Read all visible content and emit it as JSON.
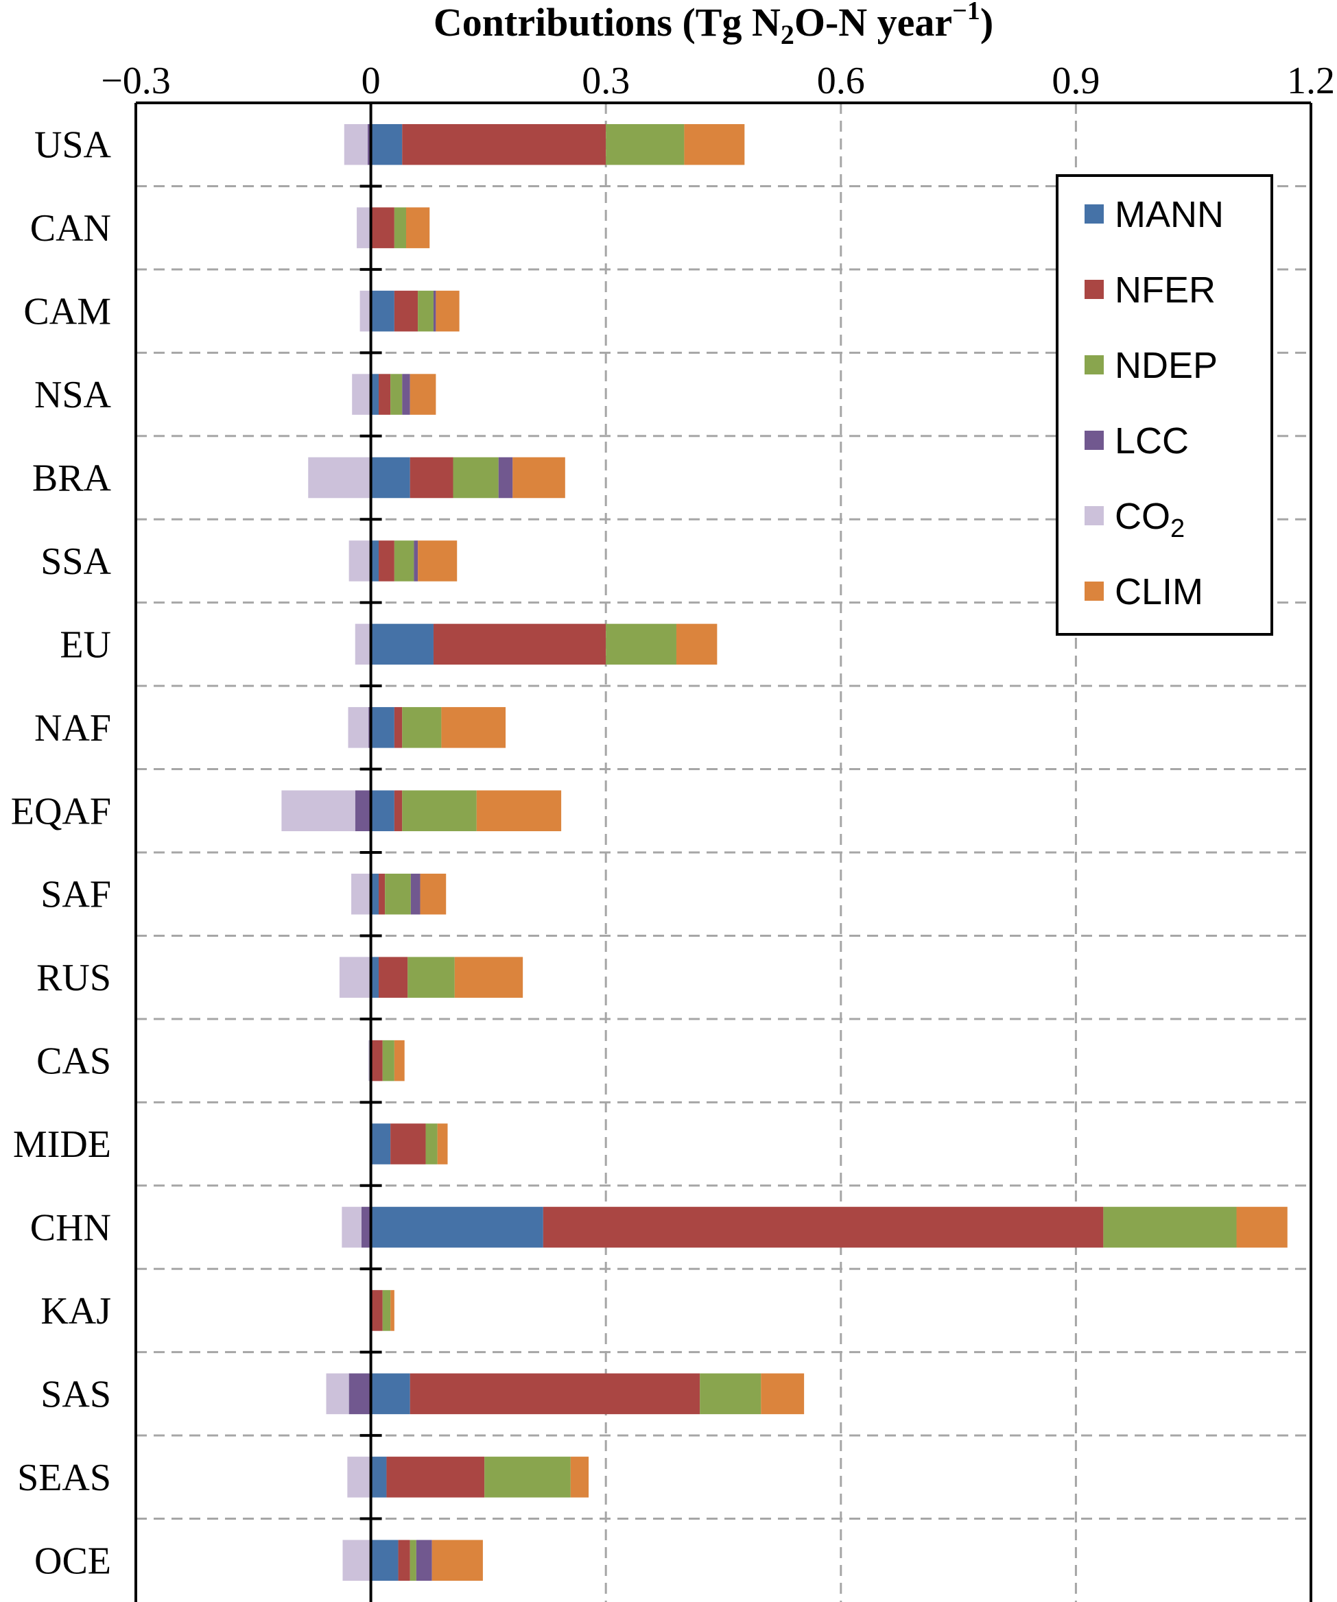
{
  "chart_data": {
    "type": "bar",
    "orientation": "horizontal",
    "stacked": true,
    "title": "Contributions (Tg N₂O-N year⁻¹)",
    "title_parts": {
      "pre": "Contributions (Tg N",
      "sub": "2",
      "mid": "O-N year",
      "sup": "−1",
      "post": ")"
    },
    "xaxis_position": "top",
    "xlim": [
      -0.3,
      1.2
    ],
    "xticks": [
      "-0.3",
      "0",
      "0.3",
      "0.6",
      "0.9",
      "1.2"
    ],
    "xtick_values": [
      -0.3,
      0,
      0.3,
      0.6,
      0.9,
      1.2
    ],
    "grid": true,
    "legend_position": "top-right",
    "categories": [
      "USA",
      "CAN",
      "CAM",
      "NSA",
      "BRA",
      "SSA",
      "EU",
      "NAF",
      "EQAF",
      "SAF",
      "RUS",
      "CAS",
      "MIDE",
      "CHN",
      "KAJ",
      "SAS",
      "SEAS",
      "OCE"
    ],
    "series": [
      {
        "name": "MANN",
        "color": "#4572a7",
        "values": [
          0.04,
          0.0,
          0.03,
          0.01,
          0.05,
          0.01,
          0.08,
          0.03,
          0.03,
          0.01,
          0.01,
          0.0,
          0.025,
          0.22,
          0.0,
          0.05,
          0.02,
          0.035
        ]
      },
      {
        "name": "NFER",
        "color": "#aa4643",
        "values": [
          0.26,
          0.03,
          0.03,
          0.015,
          0.055,
          0.02,
          0.22,
          0.01,
          0.01,
          0.008,
          0.037,
          0.015,
          0.045,
          0.715,
          0.015,
          0.37,
          0.125,
          0.015
        ]
      },
      {
        "name": "NDEP",
        "color": "#89a54e",
        "values": [
          0.1,
          0.015,
          0.02,
          0.015,
          0.058,
          0.025,
          0.09,
          0.05,
          0.095,
          0.033,
          0.06,
          0.015,
          0.015,
          0.17,
          0.01,
          0.078,
          0.11,
          0.008
        ]
      },
      {
        "name": "LCC",
        "color": "#71588f",
        "values": [
          -0.004,
          0.0,
          0.003,
          0.01,
          0.018,
          0.005,
          0.0,
          -0.003,
          -0.02,
          0.012,
          0.0,
          0.0,
          0.0,
          -0.012,
          0.0,
          -0.028,
          0.0,
          0.02
        ]
      },
      {
        "name": "CO₂",
        "color": "#ccc1da",
        "values": [
          -0.03,
          -0.018,
          -0.014,
          -0.024,
          -0.08,
          -0.028,
          -0.02,
          -0.026,
          -0.094,
          -0.025,
          -0.04,
          -0.003,
          0.0,
          -0.025,
          0.0,
          -0.029,
          -0.03,
          -0.036
        ]
      },
      {
        "name": "CLIM",
        "color": "#db843d",
        "values": [
          0.077,
          0.03,
          0.03,
          0.033,
          0.067,
          0.05,
          0.052,
          0.082,
          0.108,
          0.033,
          0.087,
          0.013,
          0.013,
          0.065,
          0.005,
          0.055,
          0.023,
          0.065
        ]
      }
    ]
  }
}
